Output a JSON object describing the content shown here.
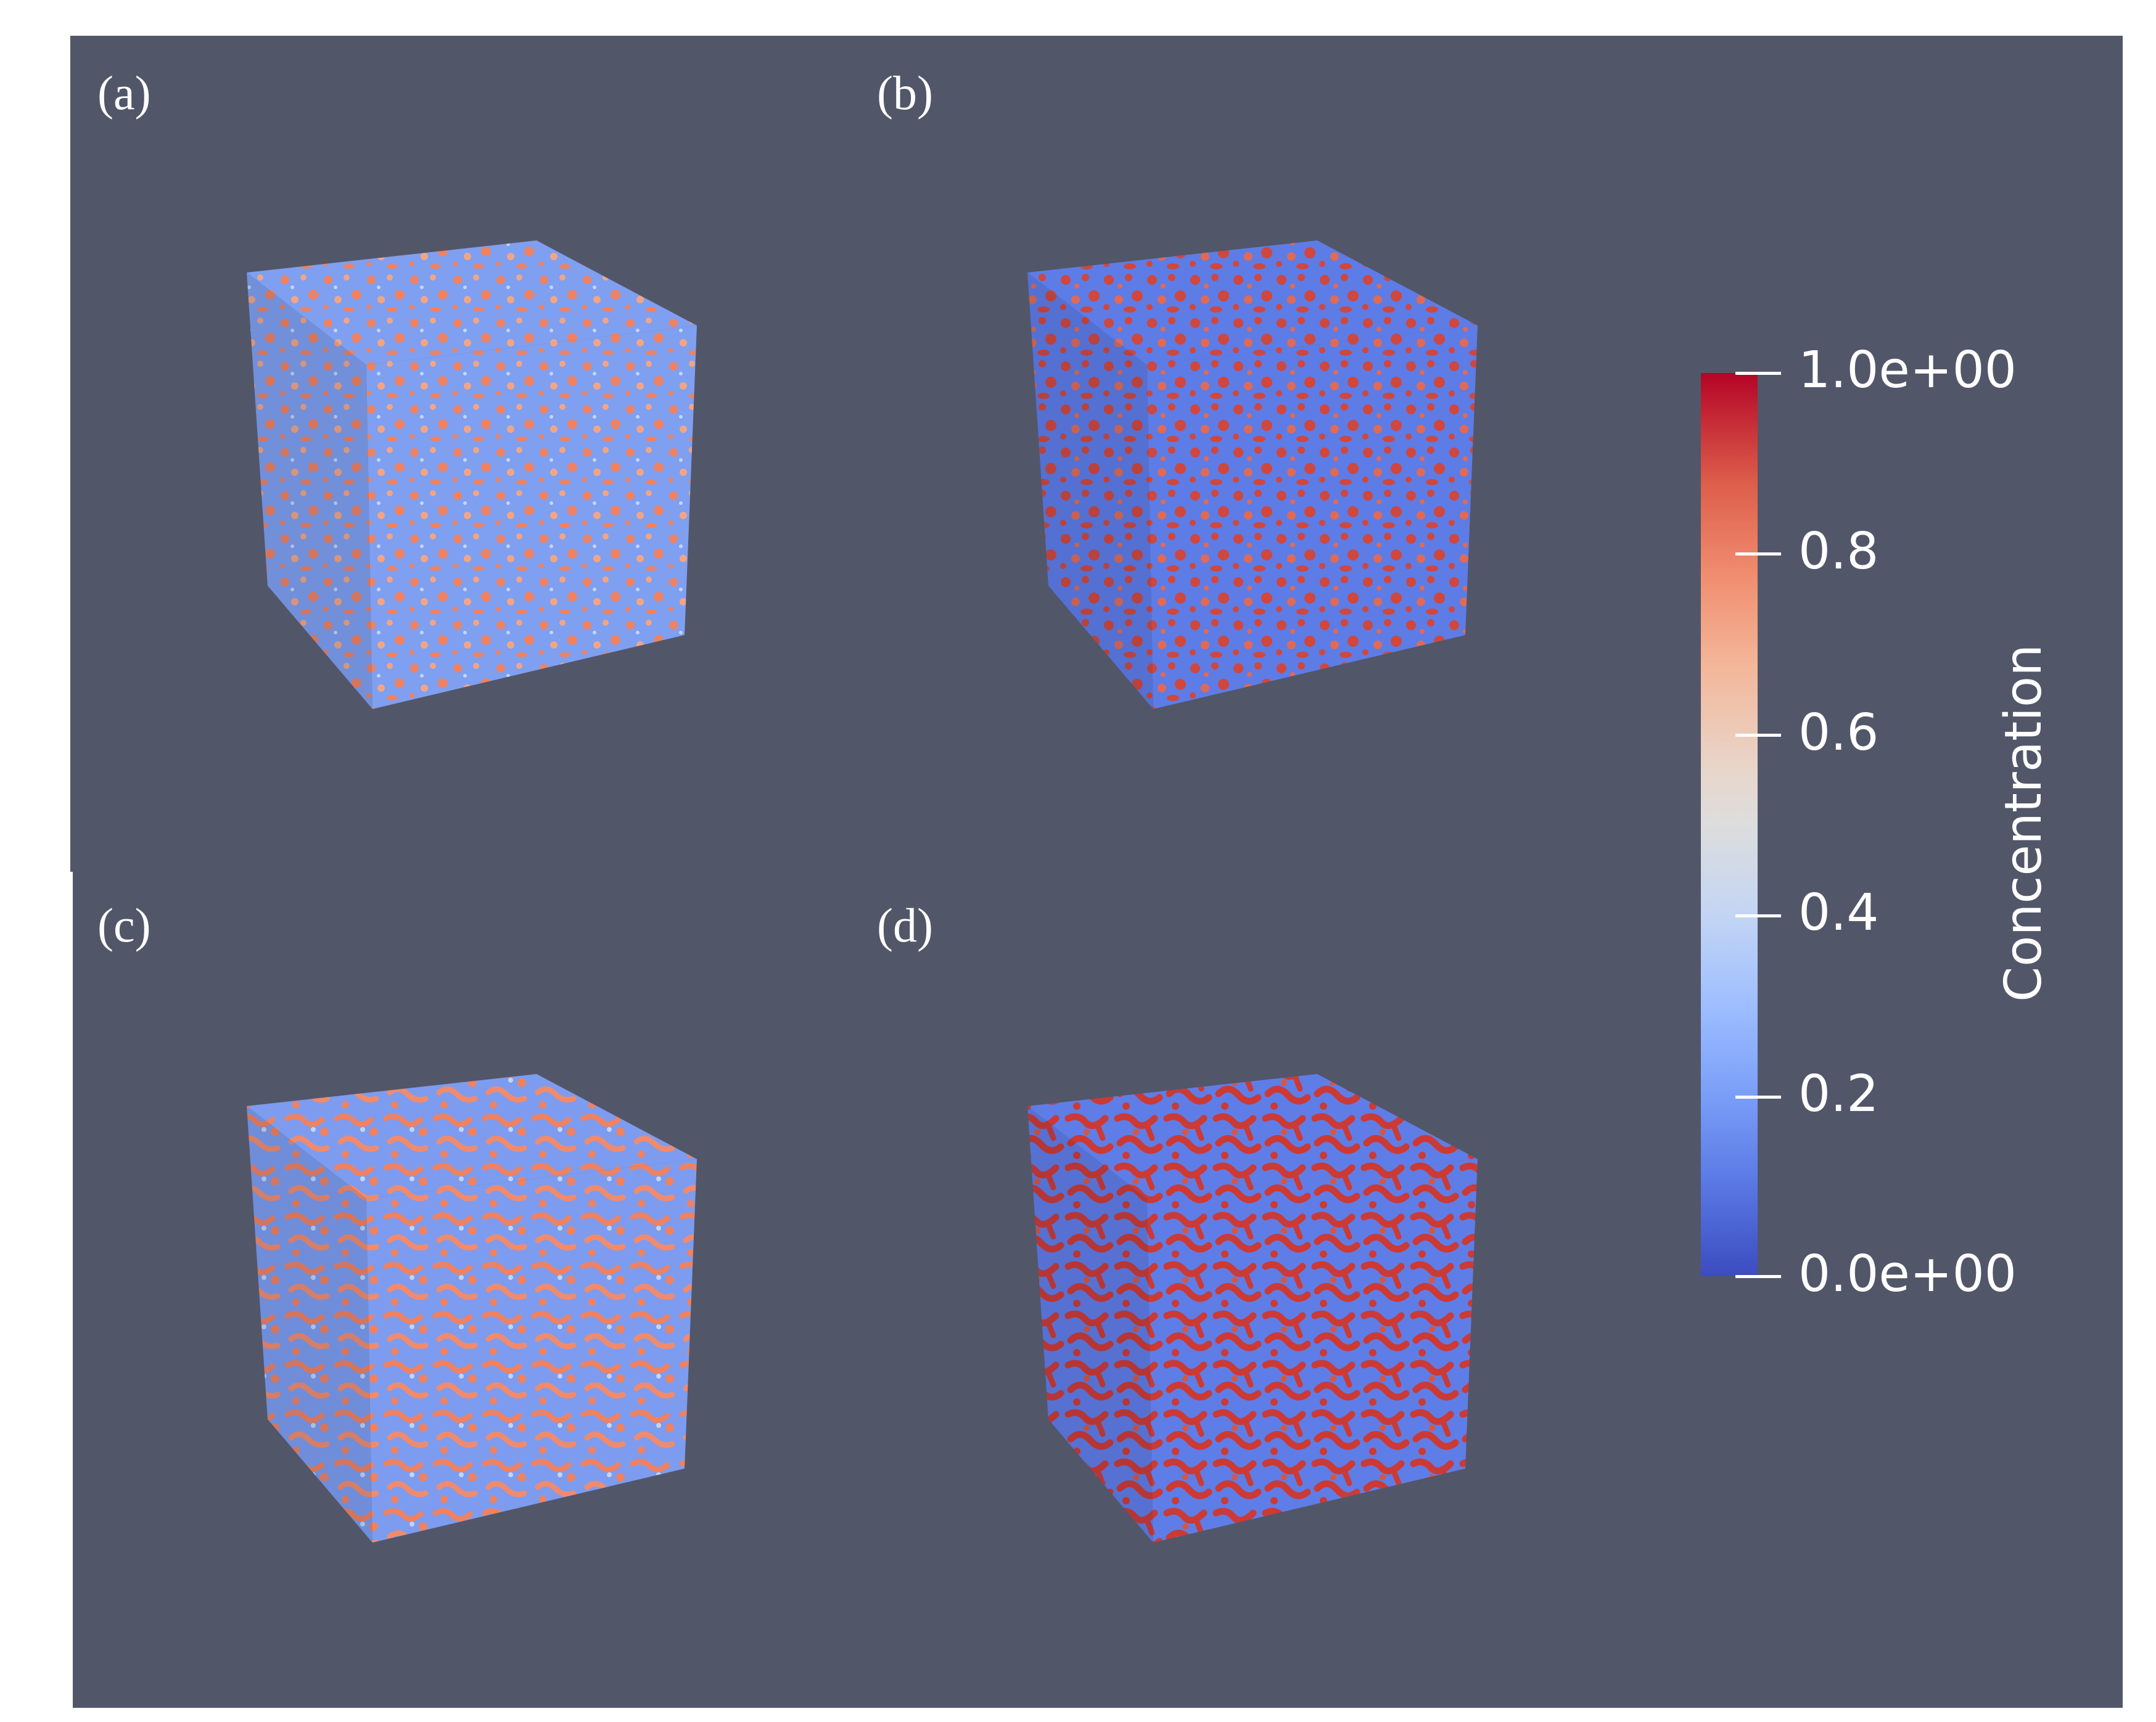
{
  "panels": [
    {
      "label": "(a)",
      "description": "cube-a"
    },
    {
      "label": "(b)",
      "description": "cube-b"
    },
    {
      "label": "(c)",
      "description": "cube-c"
    },
    {
      "label": "(d)",
      "description": "cube-d"
    }
  ],
  "colorbar": {
    "title": "Concentration",
    "ticks": [
      "1.0e+00",
      "0.8",
      "0.6",
      "0.4",
      "0.2",
      "0.0e+00"
    ],
    "colors": {
      "high": "#b40426",
      "mid": "#dddddd",
      "low": "#3b4cc0"
    }
  },
  "colors": {
    "background": "#525669"
  }
}
